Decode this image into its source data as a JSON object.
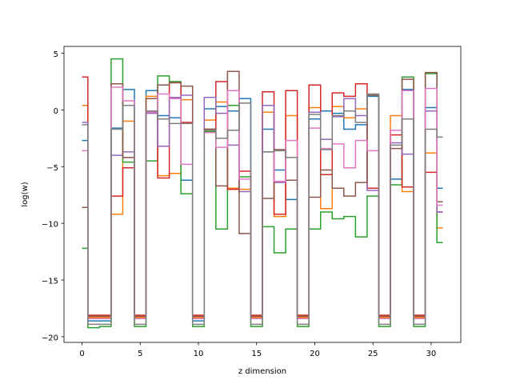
{
  "chart_data": {
    "type": "line",
    "drawstyle": "steps-mid",
    "title": "",
    "xlabel": "z dimension",
    "ylabel": "log(w)",
    "xlim": [
      -1.55,
      32.55
    ],
    "ylim": [
      -20.5,
      5.6
    ],
    "xticks": [
      0,
      5,
      10,
      15,
      20,
      25,
      30
    ],
    "yticks": [
      -20,
      -15,
      -10,
      -5,
      0,
      5
    ],
    "grid": false,
    "legend": "none",
    "x": [
      0,
      1,
      2,
      3,
      4,
      5,
      6,
      7,
      8,
      9,
      10,
      11,
      12,
      13,
      14,
      15,
      16,
      17,
      18,
      19,
      20,
      21,
      22,
      23,
      24,
      25,
      26,
      27,
      28,
      29,
      30,
      31
    ],
    "series": [
      {
        "color": "#1f77b4",
        "values": [
          -2.7,
          -18.6,
          -18.6,
          -1.6,
          1.8,
          -18.3,
          1.7,
          -0.5,
          -0.7,
          -6.2,
          -18.6,
          0.1,
          0.3,
          -0.1,
          1.0,
          -18.3,
          -1.7,
          -5.3,
          -7.9,
          -18.3,
          -0.8,
          -0.1,
          -0.3,
          -1.7,
          -1.3,
          1.2,
          -18.3,
          -6.1,
          1.8,
          -18.3,
          0.2,
          -6.9
        ]
      },
      {
        "color": "#ff7f0e",
        "values": [
          0.4,
          -18.3,
          -18.3,
          -9.2,
          -1.0,
          -18.3,
          1.2,
          -5.8,
          -5.6,
          0.9,
          -18.3,
          -0.9,
          0.7,
          -6.9,
          -7.0,
          -18.3,
          -0.2,
          -9.4,
          -0.5,
          -18.3,
          0.2,
          -8.7,
          0.3,
          -0.7,
          0.1,
          -6.9,
          -18.3,
          -0.5,
          -7.2,
          -18.3,
          -3.8,
          -10.4
        ]
      },
      {
        "color": "#2ca02c",
        "values": [
          -12.2,
          -19.2,
          -19.1,
          4.5,
          -4.6,
          -19.1,
          -4.5,
          3.0,
          2.5,
          -7.4,
          -19.1,
          -1.9,
          -10.5,
          0.4,
          -5.9,
          -19.1,
          -10.3,
          -12.6,
          -10.5,
          -19.1,
          -10.5,
          -9.0,
          -9.6,
          -9.4,
          -11.2,
          -7.6,
          -19.1,
          -6.6,
          2.9,
          -19.1,
          3.2,
          -11.7
        ]
      },
      {
        "color": "#d62728",
        "values": [
          2.9,
          -18.1,
          -18.1,
          -7.6,
          -5.1,
          -18.1,
          -0.2,
          -6.0,
          2.4,
          -1.1,
          -18.1,
          -1.7,
          2.5,
          -7.0,
          -5.4,
          -18.1,
          1.6,
          -9.2,
          1.7,
          -18.1,
          2.2,
          -5.7,
          1.5,
          1.2,
          2.3,
          -6.9,
          -18.1,
          -2.2,
          -6.8,
          -18.1,
          -5.5,
          -9.0
        ]
      },
      {
        "color": "#9467bd",
        "values": [
          -1.1,
          -18.4,
          -18.4,
          -4.0,
          -3.7,
          -18.4,
          -0.3,
          -3.2,
          1.1,
          1.3,
          -18.4,
          1.1,
          -0.3,
          -3.1,
          -7.2,
          -18.4,
          0.4,
          -6.4,
          -6.2,
          -18.4,
          -0.2,
          -2.6,
          -0.6,
          1.0,
          -0.5,
          -7.1,
          -18.4,
          -2.9,
          -3.9,
          -18.4,
          -0.1,
          -9.0
        ]
      },
      {
        "color": "#8c564b",
        "values": [
          -8.6,
          -18.2,
          -18.2,
          2.3,
          -4.2,
          -18.2,
          1.0,
          2.2,
          2.4,
          2.1,
          -18.2,
          -1.7,
          -6.7,
          3.4,
          -10.9,
          -18.2,
          -7.8,
          -3.5,
          -6.2,
          -18.2,
          -7.7,
          -5.3,
          -6.9,
          -7.6,
          -6.4,
          1.3,
          -18.2,
          -3.4,
          2.7,
          -18.2,
          3.3,
          -8.1
        ]
      },
      {
        "color": "#e377c2",
        "values": [
          -3.6,
          -18.4,
          -18.4,
          2.0,
          0.8,
          -18.4,
          -0.2,
          1.4,
          1.0,
          -4.8,
          -18.4,
          -2.0,
          -3.3,
          1.7,
          -6.1,
          -18.4,
          -3.7,
          -6.3,
          -2.7,
          -18.4,
          -1.6,
          -3.4,
          -3.0,
          -5.1,
          -2.7,
          -3.6,
          -18.4,
          -1.8,
          1.7,
          -18.4,
          1.9,
          -8.4
        ]
      },
      {
        "color": "#7f7f7f",
        "values": [
          -1.3,
          -18.9,
          -18.9,
          -1.7,
          0.4,
          -18.9,
          -0.1,
          -0.8,
          -1.2,
          -1.2,
          -18.9,
          -1.8,
          -2.5,
          -1.8,
          0.6,
          -18.9,
          -3.7,
          -3.6,
          -4.2,
          -18.9,
          -0.4,
          -3.5,
          -0.5,
          -0.1,
          -1.1,
          1.4,
          -18.9,
          -3.1,
          -0.8,
          -18.9,
          -1.7,
          -2.4
        ]
      }
    ]
  }
}
